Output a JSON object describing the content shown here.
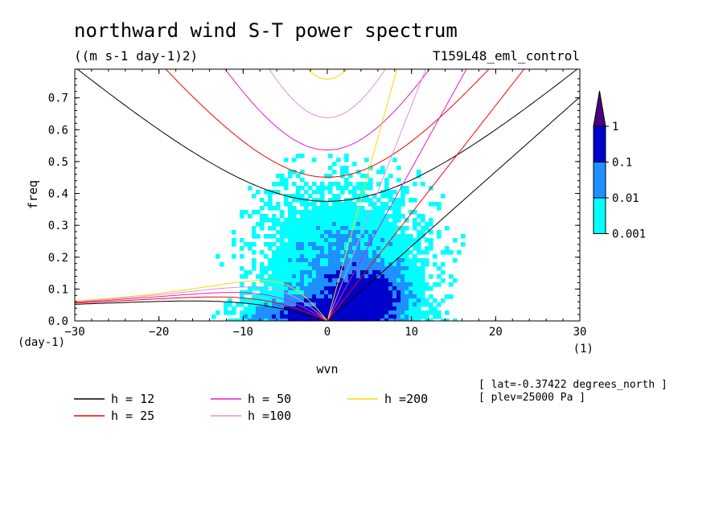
{
  "chart_data": {
    "type": "heatmap",
    "title": "northward wind S-T power spectrum",
    "units": "((m s-1 day-1)2)",
    "run_label": "T159L48_eml_control",
    "xlabel": "wvn",
    "ylabel": "freq",
    "x_unit": "(1)",
    "y_unit": "(day-1)",
    "xlim": [
      -30,
      30
    ],
    "ylim": [
      0,
      0.79
    ],
    "xticks": [
      -30,
      -20,
      -10,
      0,
      10,
      20,
      30
    ],
    "yticks": [
      0.0,
      0.1,
      0.2,
      0.3,
      0.4,
      0.5,
      0.6,
      0.7
    ],
    "ytick_labels": [
      "0.0",
      "0.1",
      "0.2",
      "0.3",
      "0.4",
      "0.5",
      "0.6",
      "0.7"
    ],
    "colorbar": {
      "levels": [
        0.001,
        0.01,
        0.1,
        1
      ],
      "labels": [
        "0.001",
        "0.01",
        "0.1",
        "1"
      ],
      "colors": [
        "#00ffff",
        "#1e90ff",
        "#0000cd",
        "#4b0082"
      ]
    },
    "dispersion_curves": [
      {
        "label": "h = 12",
        "h": 12,
        "color": "#000000"
      },
      {
        "label": "h = 25",
        "h": 25,
        "color": "#ff0000"
      },
      {
        "label": "h = 50",
        "h": 50,
        "color": "#e01ec8"
      },
      {
        "label": "h =100",
        "h": 100,
        "color": "#e090e0"
      },
      {
        "label": "h =200",
        "h": 200,
        "color": "#ffd700"
      }
    ],
    "annotations": [
      "[ lat=-0.37422 degrees_north ]",
      "[ plev=25000 Pa ]"
    ]
  }
}
